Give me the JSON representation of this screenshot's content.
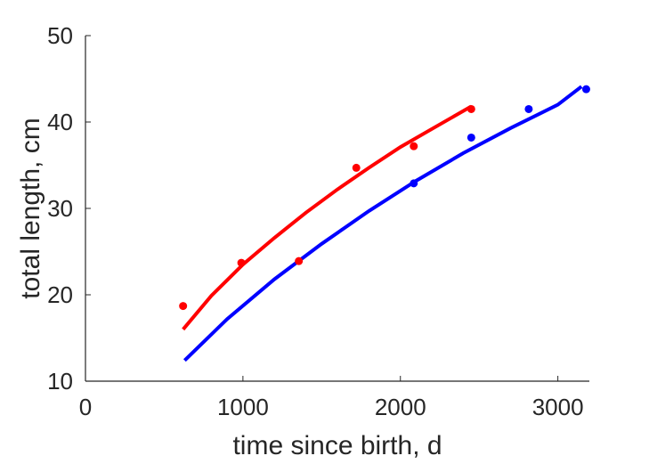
{
  "chart_data": {
    "type": "scatter",
    "title": "",
    "xlabel": "time since birth, d",
    "ylabel": "total length, cm",
    "xlim": [
      0,
      3200
    ],
    "ylim": [
      10,
      50
    ],
    "xticks": [
      0,
      1000,
      2000,
      3000
    ],
    "yticks": [
      10,
      20,
      30,
      40,
      50
    ],
    "grid": false,
    "legend": "none",
    "series": [
      {
        "color": "#ff0000",
        "points": {
          "x": [
            620,
            990,
            1355,
            1720,
            2085,
            2450
          ],
          "y": [
            18.7,
            23.7,
            23.9,
            34.7,
            37.2,
            41.5
          ]
        },
        "fit": {
          "x": [
            620,
            800,
            1000,
            1200,
            1400,
            1600,
            1800,
            2000,
            2200,
            2450
          ],
          "y": [
            16.0,
            19.9,
            23.5,
            26.6,
            29.5,
            32.2,
            34.7,
            37.1,
            39.2,
            41.8
          ]
        }
      },
      {
        "color": "#0000ff",
        "points": {
          "x": [
            2085,
            2450,
            2815,
            3180
          ],
          "y": [
            32.9,
            38.2,
            41.5,
            43.8
          ]
        },
        "fit": {
          "x": [
            630,
            900,
            1200,
            1500,
            1800,
            2100,
            2400,
            2700,
            3000,
            3150
          ],
          "y": [
            12.4,
            17.2,
            21.8,
            25.9,
            29.7,
            33.2,
            36.4,
            39.3,
            42.0,
            44.1
          ]
        }
      }
    ]
  }
}
